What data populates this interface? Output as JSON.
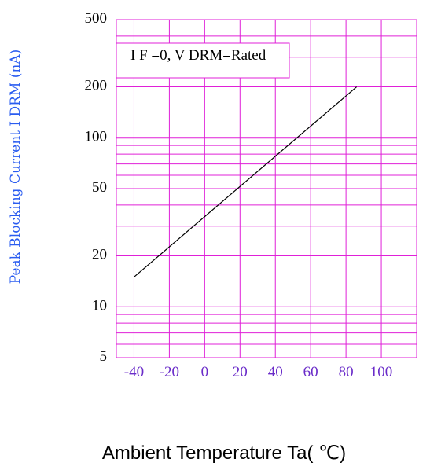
{
  "chart_data": {
    "type": "line",
    "ylabel": "Peak Blocking Current I DRM (nA)",
    "xlabel": "Ambient Temperature Ta( ℃)",
    "annotation": "I F =0, V DRM=Rated",
    "y_scale": "log",
    "ylim": [
      5,
      500
    ],
    "xlim": [
      -50,
      120
    ],
    "y_ticks": [
      5,
      10,
      20,
      50,
      100,
      200,
      500
    ],
    "x_ticks": [
      -40,
      -20,
      0,
      20,
      40,
      60,
      80,
      100
    ],
    "grid": true,
    "colors": {
      "grid": "#e020d8",
      "line": "#000000",
      "ylabel": "#2a5cf0",
      "xtick": "#6a2cc9"
    },
    "series": [
      {
        "x": [
          -40,
          86
        ],
        "y": [
          15,
          200
        ]
      }
    ]
  }
}
